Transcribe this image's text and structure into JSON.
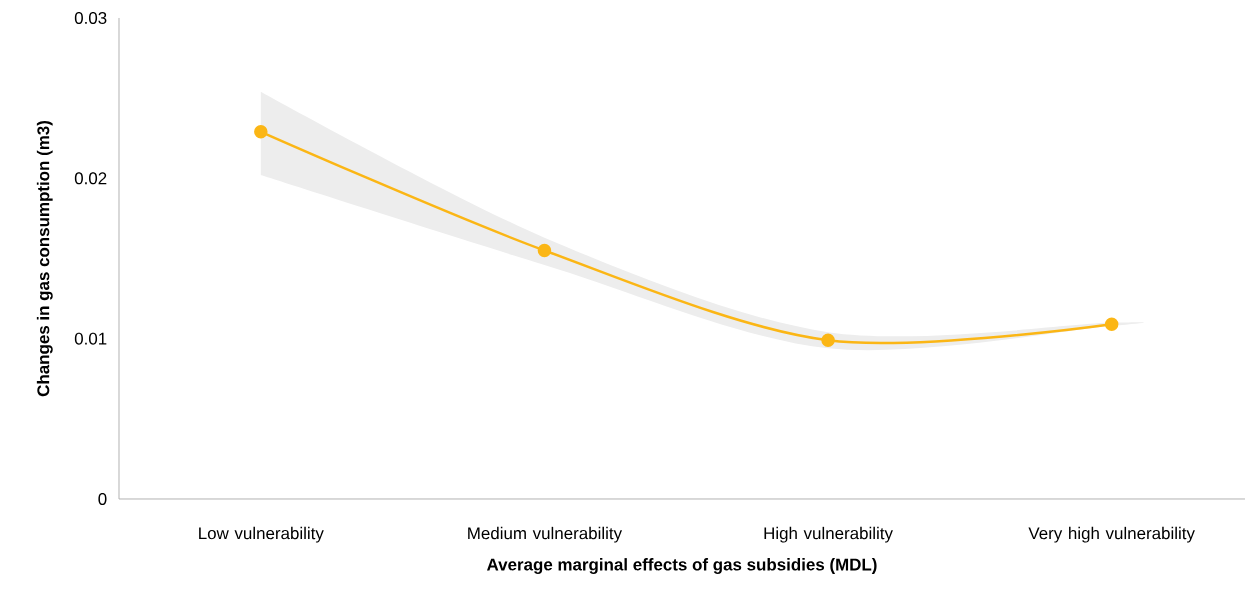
{
  "chart_data": {
    "type": "line",
    "xlabel": "Average marginal effects of gas subsidies (MDL)",
    "ylabel": "Changes in gas consumption (m3)",
    "categories": [
      "Low vulnerability",
      "Medium vulnerability",
      "High vulnerability",
      "Very high vulnerability"
    ],
    "series": [
      {
        "color": "#fbb615",
        "values": [
          0.0229,
          0.0155,
          0.0099,
          0.0109
        ],
        "lower": [
          0.0202,
          0.0146,
          0.0094,
          0.0108
        ],
        "upper": [
          0.0254,
          0.0163,
          0.0104,
          0.011
        ]
      }
    ],
    "ylim": [
      0,
      0.03
    ],
    "yticks": [
      0,
      0.01,
      0.02,
      0.03
    ],
    "marker": "circle",
    "grid": false
  }
}
